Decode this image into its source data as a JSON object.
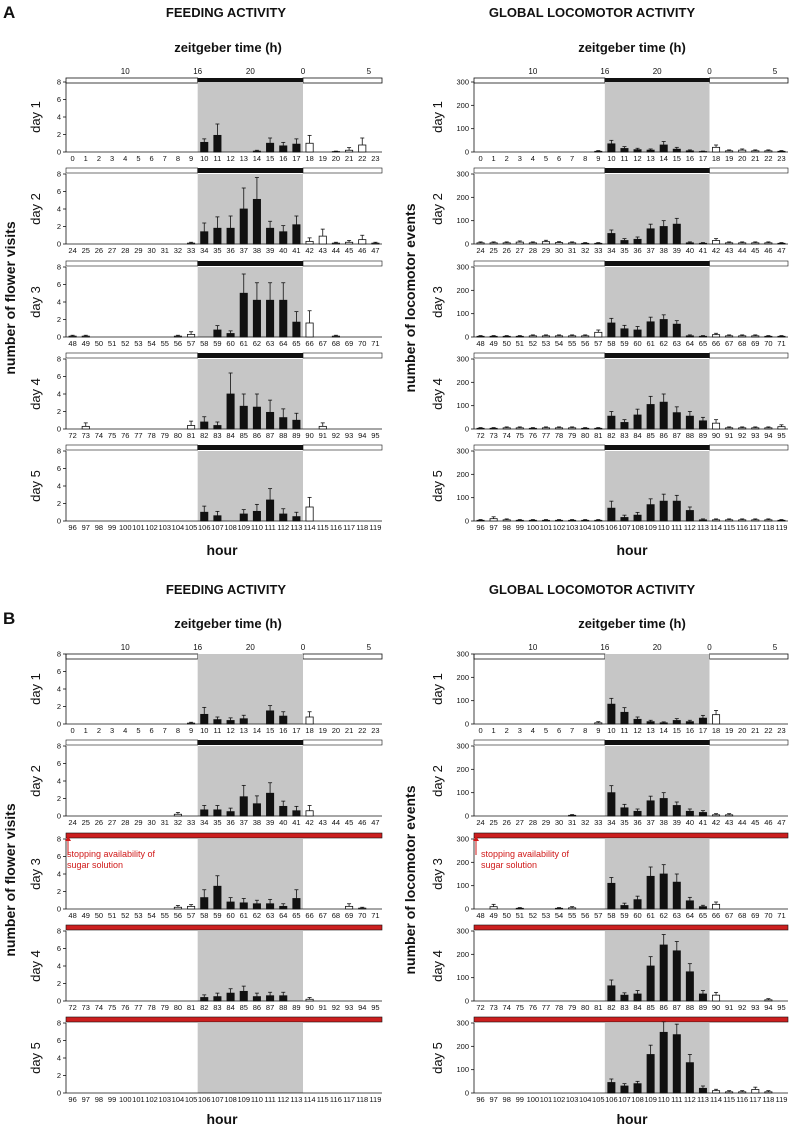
{
  "colors": {
    "bar_dark": "#111111",
    "bar_light": "#ffffff",
    "night_shade": "#c6c6c6",
    "red_bar": "#cc1f1f",
    "red_text": "#d01818"
  },
  "axis_labels": {
    "feeding_y": "number of flower visits",
    "locomotor_y": "number of locomotor events",
    "x": "hour",
    "zeitgeber": "zeitgeber time (h)"
  },
  "zeitgeber_ticks": [
    "10",
    "16",
    "20",
    "0",
    "5"
  ],
  "annotation": {
    "line1": "stopping availability of",
    "line2": "sugar solution"
  },
  "chart_data": [
    {
      "panel": "A",
      "title": "FEEDING ACTIVITY",
      "type": "bar",
      "ylim": [
        0,
        8
      ],
      "yticks": [
        "0",
        "2",
        "4",
        "6",
        "8"
      ],
      "days": [
        {
          "label": "day 1",
          "values": [
            0,
            0,
            0,
            0,
            0,
            0,
            0,
            0,
            0,
            0,
            1.1,
            1.9,
            0,
            0,
            0.1,
            1.0,
            0.7,
            0.9,
            1.0,
            0,
            0.05,
            0.2,
            0.8,
            0
          ],
          "errors": [
            0,
            0,
            0,
            0,
            0,
            0,
            0,
            0,
            0,
            0,
            0.4,
            1.3,
            0,
            0,
            0.1,
            0.6,
            0.4,
            0.6,
            0.9,
            0,
            0.05,
            0.3,
            0.8,
            0
          ],
          "stopped": false
        },
        {
          "label": "day 2",
          "values": [
            0,
            0,
            0,
            0,
            0,
            0,
            0,
            0,
            0,
            0.1,
            1.4,
            1.8,
            1.8,
            4.0,
            5.1,
            1.8,
            1.4,
            2.2,
            0.3,
            0.9,
            0.1,
            0.2,
            0.5,
            0.1
          ],
          "errors": [
            0,
            0,
            0,
            0,
            0,
            0,
            0,
            0,
            0,
            0.1,
            1.0,
            1.3,
            1.4,
            2.4,
            2.5,
            0.8,
            0.7,
            1.0,
            0.4,
            0.8,
            0.1,
            0.2,
            0.5,
            0.1
          ],
          "stopped": false
        },
        {
          "label": "day 3",
          "values": [
            0.1,
            0.1,
            0,
            0,
            0,
            0,
            0,
            0,
            0.1,
            0.3,
            0,
            0.8,
            0.4,
            5.0,
            4.2,
            4.2,
            4.2,
            1.7,
            1.6,
            0,
            0.1,
            0,
            0,
            0
          ],
          "errors": [
            0.1,
            0.1,
            0,
            0,
            0,
            0,
            0,
            0,
            0.1,
            0.3,
            0,
            0.5,
            0.3,
            2.2,
            2.0,
            2.0,
            2.0,
            1.2,
            1.4,
            0,
            0.1,
            0,
            0,
            0
          ],
          "stopped": false
        },
        {
          "label": "day 4",
          "values": [
            0,
            0.3,
            0,
            0,
            0,
            0,
            0,
            0,
            0,
            0.4,
            0.8,
            0.4,
            4.0,
            2.6,
            2.5,
            1.9,
            1.3,
            1.0,
            0,
            0.3,
            0,
            0,
            0,
            0
          ],
          "errors": [
            0,
            0.4,
            0,
            0,
            0,
            0,
            0,
            0,
            0,
            0.5,
            0.6,
            0.4,
            2.4,
            1.4,
            1.5,
            1.4,
            1.0,
            0.8,
            0,
            0.4,
            0,
            0,
            0,
            0
          ],
          "stopped": false
        },
        {
          "label": "day 5",
          "values": [
            0,
            0,
            0,
            0,
            0,
            0,
            0,
            0,
            0,
            0,
            1.0,
            0.6,
            0,
            0.8,
            1.1,
            2.4,
            0.8,
            0.5,
            1.6,
            0,
            0,
            0,
            0,
            0
          ],
          "errors": [
            0,
            0,
            0,
            0,
            0,
            0,
            0,
            0,
            0,
            0,
            0.7,
            0.5,
            0,
            0.5,
            0.8,
            1.3,
            0.6,
            0.5,
            1.1,
            0,
            0,
            0,
            0,
            0
          ],
          "stopped": false
        }
      ]
    },
    {
      "panel": "A",
      "title": "GLOBAL LOCOMOTOR ACTIVITY",
      "type": "bar",
      "ylim": [
        0,
        300
      ],
      "yticks": [
        "0",
        "100",
        "200",
        "300"
      ],
      "days": [
        {
          "label": "day 1",
          "values": [
            0,
            0,
            0,
            0,
            0,
            0,
            0,
            0,
            0,
            3,
            35,
            15,
            10,
            8,
            30,
            12,
            5,
            2,
            20,
            5,
            8,
            5,
            5,
            3
          ],
          "errors": [
            0,
            0,
            0,
            0,
            0,
            0,
            0,
            0,
            0,
            3,
            15,
            8,
            6,
            5,
            15,
            8,
            4,
            2,
            10,
            4,
            5,
            4,
            4,
            3
          ],
          "stopped": false
        },
        {
          "label": "day 2",
          "values": [
            5,
            5,
            5,
            8,
            5,
            10,
            6,
            5,
            3,
            3,
            45,
            15,
            20,
            65,
            75,
            85,
            5,
            3,
            15,
            5,
            5,
            5,
            5,
            3
          ],
          "errors": [
            4,
            4,
            4,
            5,
            4,
            6,
            4,
            4,
            3,
            3,
            15,
            8,
            10,
            20,
            25,
            25,
            4,
            3,
            8,
            4,
            4,
            4,
            4,
            3
          ],
          "stopped": false
        },
        {
          "label": "day 3",
          "values": [
            3,
            3,
            3,
            3,
            5,
            5,
            5,
            5,
            5,
            20,
            60,
            35,
            30,
            65,
            75,
            55,
            5,
            3,
            10,
            5,
            5,
            5,
            3,
            3
          ],
          "errors": [
            3,
            3,
            3,
            3,
            4,
            4,
            4,
            4,
            4,
            10,
            20,
            15,
            15,
            20,
            20,
            15,
            4,
            3,
            6,
            4,
            4,
            4,
            3,
            3
          ],
          "stopped": false
        },
        {
          "label": "day 4",
          "values": [
            3,
            3,
            5,
            5,
            3,
            5,
            5,
            5,
            3,
            3,
            55,
            28,
            60,
            105,
            115,
            70,
            55,
            35,
            25,
            5,
            5,
            5,
            5,
            10
          ],
          "errors": [
            3,
            3,
            4,
            4,
            3,
            4,
            4,
            4,
            3,
            3,
            20,
            12,
            25,
            35,
            35,
            25,
            20,
            15,
            15,
            4,
            4,
            4,
            4,
            8
          ],
          "stopped": false
        },
        {
          "label": "day 5",
          "values": [
            3,
            10,
            5,
            3,
            3,
            3,
            3,
            3,
            3,
            3,
            55,
            15,
            25,
            70,
            85,
            85,
            45,
            5,
            5,
            5,
            5,
            5,
            5,
            3
          ],
          "errors": [
            3,
            8,
            4,
            3,
            3,
            3,
            3,
            3,
            3,
            3,
            30,
            10,
            12,
            25,
            30,
            25,
            15,
            4,
            4,
            4,
            4,
            4,
            4,
            3
          ],
          "stopped": false
        }
      ]
    },
    {
      "panel": "B",
      "title": "FEEDING ACTIVITY",
      "type": "bar",
      "ylim": [
        0,
        8
      ],
      "yticks": [
        "0",
        "2",
        "4",
        "6",
        "8"
      ],
      "days": [
        {
          "label": "day 1",
          "values": [
            0,
            0,
            0,
            0,
            0,
            0,
            0,
            0,
            0,
            0.1,
            1.1,
            0.5,
            0.4,
            0.6,
            0,
            1.5,
            0.9,
            0,
            0.8,
            0,
            0,
            0,
            0,
            0
          ],
          "errors": [
            0,
            0,
            0,
            0,
            0,
            0,
            0,
            0,
            0,
            0.1,
            0.8,
            0.3,
            0.3,
            0.4,
            0,
            0.6,
            0.5,
            0,
            0.6,
            0,
            0,
            0,
            0,
            0
          ],
          "stopped": false
        },
        {
          "label": "day 2",
          "values": [
            0,
            0,
            0,
            0,
            0,
            0,
            0,
            0,
            0.2,
            0,
            0.7,
            0.7,
            0.5,
            2.2,
            1.4,
            2.6,
            1.1,
            0.6,
            0.6,
            0,
            0,
            0,
            0,
            0
          ],
          "errors": [
            0,
            0,
            0,
            0,
            0,
            0,
            0,
            0,
            0.2,
            0,
            0.5,
            0.5,
            0.4,
            1.3,
            0.9,
            1.2,
            0.6,
            0.5,
            0.6,
            0,
            0,
            0,
            0,
            0
          ],
          "stopped": false
        },
        {
          "label": "day 3",
          "values": [
            0,
            0,
            0,
            0,
            0,
            0,
            0,
            0,
            0.2,
            0.3,
            1.3,
            2.6,
            0.8,
            0.7,
            0.6,
            0.6,
            0.3,
            1.2,
            0,
            0,
            0,
            0.3,
            0.1,
            0
          ],
          "errors": [
            0,
            0,
            0,
            0,
            0,
            0,
            0,
            0,
            0.2,
            0.2,
            0.9,
            1.2,
            0.5,
            0.5,
            0.4,
            0.5,
            0.3,
            1.0,
            0,
            0,
            0,
            0.3,
            0.1,
            0
          ],
          "stopped": true
        },
        {
          "label": "day 4",
          "values": [
            0,
            0,
            0,
            0,
            0,
            0,
            0,
            0,
            0,
            0,
            0.4,
            0.5,
            0.9,
            1.1,
            0.5,
            0.6,
            0.6,
            0,
            0.2,
            0,
            0,
            0,
            0,
            0
          ],
          "errors": [
            0,
            0,
            0,
            0,
            0,
            0,
            0,
            0,
            0,
            0,
            0.3,
            0.4,
            0.5,
            0.6,
            0.4,
            0.4,
            0.4,
            0,
            0.2,
            0,
            0,
            0,
            0,
            0
          ],
          "stopped": true
        },
        {
          "label": "day 5",
          "values": [
            0,
            0,
            0,
            0,
            0,
            0,
            0,
            0,
            0,
            0,
            0,
            0,
            0,
            0,
            0,
            0,
            0,
            0,
            0,
            0,
            0,
            0,
            0,
            0
          ],
          "errors": [
            0,
            0,
            0,
            0,
            0,
            0,
            0,
            0,
            0,
            0,
            0,
            0,
            0,
            0,
            0,
            0,
            0,
            0,
            0,
            0,
            0,
            0,
            0,
            0
          ],
          "stopped": true
        }
      ]
    },
    {
      "panel": "B",
      "title": "GLOBAL LOCOMOTOR ACTIVITY",
      "type": "bar",
      "ylim": [
        0,
        300
      ],
      "yticks": [
        "0",
        "100",
        "200",
        "300"
      ],
      "days": [
        {
          "label": "day 1",
          "values": [
            0,
            0,
            0,
            0,
            0,
            0,
            0,
            0,
            0,
            5,
            85,
            50,
            20,
            10,
            5,
            15,
            10,
            25,
            40,
            0,
            0,
            0,
            0,
            0
          ],
          "errors": [
            0,
            0,
            0,
            0,
            0,
            0,
            0,
            0,
            0,
            5,
            25,
            20,
            10,
            6,
            4,
            8,
            6,
            12,
            18,
            0,
            0,
            0,
            0,
            0
          ],
          "stopped": false
        },
        {
          "label": "day 2",
          "values": [
            0,
            0,
            0,
            0,
            0,
            0,
            0,
            3,
            0,
            0,
            100,
            35,
            20,
            65,
            75,
            45,
            20,
            15,
            5,
            5,
            0,
            0,
            0,
            0
          ],
          "errors": [
            0,
            0,
            0,
            0,
            0,
            0,
            0,
            3,
            0,
            0,
            30,
            15,
            10,
            20,
            25,
            15,
            10,
            8,
            5,
            5,
            0,
            0,
            0,
            0
          ],
          "stopped": false
        },
        {
          "label": "day 3",
          "values": [
            0,
            10,
            0,
            3,
            0,
            0,
            3,
            5,
            0,
            0,
            110,
            15,
            40,
            140,
            150,
            115,
            35,
            10,
            20,
            0,
            0,
            0,
            0,
            0
          ],
          "errors": [
            0,
            10,
            0,
            3,
            0,
            0,
            3,
            5,
            0,
            0,
            25,
            10,
            15,
            40,
            40,
            35,
            15,
            6,
            10,
            0,
            0,
            0,
            0,
            0
          ],
          "stopped": true
        },
        {
          "label": "day 4",
          "values": [
            0,
            0,
            0,
            0,
            0,
            0,
            0,
            0,
            0,
            0,
            65,
            25,
            30,
            150,
            240,
            215,
            125,
            30,
            25,
            0,
            0,
            0,
            5,
            0
          ],
          "errors": [
            0,
            0,
            0,
            0,
            0,
            0,
            0,
            0,
            0,
            0,
            25,
            10,
            15,
            40,
            45,
            40,
            35,
            15,
            12,
            0,
            0,
            0,
            5,
            0
          ],
          "stopped": true
        },
        {
          "label": "day 5",
          "values": [
            0,
            0,
            0,
            0,
            0,
            0,
            0,
            0,
            0,
            0,
            45,
            30,
            40,
            165,
            260,
            250,
            130,
            20,
            10,
            5,
            5,
            15,
            5,
            0
          ],
          "errors": [
            0,
            0,
            0,
            0,
            0,
            0,
            0,
            0,
            0,
            0,
            15,
            10,
            10,
            40,
            45,
            45,
            35,
            10,
            6,
            5,
            5,
            10,
            5,
            0
          ],
          "stopped": true
        }
      ]
    }
  ]
}
